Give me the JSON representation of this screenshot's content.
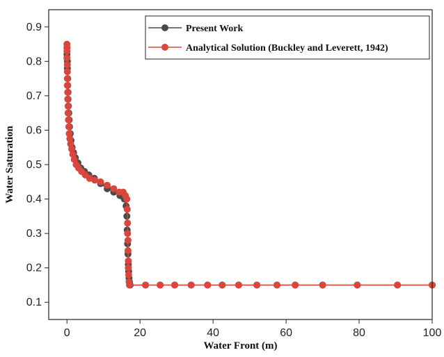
{
  "chart_data": {
    "type": "line",
    "title": "",
    "xlabel": "Water Front (m)",
    "ylabel": "Water Saturation",
    "xlim": [
      -5,
      100
    ],
    "ylim": [
      0.05,
      0.95
    ],
    "xticks": [
      0,
      20,
      40,
      60,
      80,
      100
    ],
    "yticks": [
      0.1,
      0.2,
      0.3,
      0.4,
      0.5,
      0.6,
      0.7,
      0.8,
      0.9
    ],
    "grid": false,
    "legend_position": "top-right",
    "series": [
      {
        "name": "Present Work",
        "color": "#4a4a4a",
        "x": [
          0.0,
          0.0,
          0.1,
          0.1,
          0.2,
          0.2,
          0.3,
          0.3,
          0.4,
          0.5,
          0.6,
          0.7,
          0.9,
          1.1,
          1.4,
          1.8,
          2.3,
          3.0,
          3.8,
          4.8,
          6.0,
          7.5,
          9.2,
          11.0,
          12.8,
          14.5,
          15.7,
          16.2,
          16.4,
          16.5,
          16.6,
          16.7,
          16.8,
          16.9,
          17.0,
          17.1,
          17.3,
          21.5,
          25.5,
          29.5,
          34.0,
          38.5,
          42.5,
          47.0,
          52.0,
          57.5,
          62.5,
          70.0,
          79.5,
          90.5,
          100.0
        ],
        "y": [
          0.84,
          0.82,
          0.8,
          0.78,
          0.75,
          0.73,
          0.71,
          0.69,
          0.67,
          0.65,
          0.63,
          0.61,
          0.59,
          0.57,
          0.55,
          0.535,
          0.52,
          0.505,
          0.49,
          0.48,
          0.47,
          0.46,
          0.445,
          0.43,
          0.42,
          0.41,
          0.4,
          0.38,
          0.35,
          0.31,
          0.27,
          0.24,
          0.21,
          0.19,
          0.17,
          0.16,
          0.15,
          0.15,
          0.15,
          0.15,
          0.15,
          0.15,
          0.15,
          0.15,
          0.15,
          0.15,
          0.15,
          0.15,
          0.15,
          0.15,
          0.15
        ]
      },
      {
        "name": "Analytical Solution (Buckley and Leverett, 1942)",
        "color": "#d9463b",
        "x": [
          0.0,
          0.0,
          0.0,
          0.0,
          0.1,
          0.1,
          0.1,
          0.1,
          0.2,
          0.2,
          0.3,
          0.3,
          0.4,
          0.5,
          0.6,
          0.8,
          1.0,
          1.3,
          1.6,
          2.0,
          2.5,
          3.2,
          4.0,
          5.0,
          6.2,
          7.6,
          9.2,
          11.0,
          12.8,
          14.3,
          15.4,
          16.0,
          16.4,
          16.5,
          16.6,
          16.6,
          16.7,
          16.7,
          16.8,
          16.8,
          16.9,
          17.0,
          17.1,
          21.5,
          25.5,
          29.5,
          34.0,
          38.5,
          42.5,
          47.0,
          52.0,
          57.5,
          62.5,
          70.0,
          79.5,
          90.5,
          100.0
        ],
        "y": [
          0.85,
          0.84,
          0.83,
          0.81,
          0.79,
          0.77,
          0.75,
          0.73,
          0.71,
          0.69,
          0.67,
          0.65,
          0.63,
          0.61,
          0.59,
          0.575,
          0.56,
          0.545,
          0.53,
          0.515,
          0.5,
          0.49,
          0.48,
          0.47,
          0.46,
          0.455,
          0.45,
          0.44,
          0.43,
          0.42,
          0.42,
          0.41,
          0.4,
          0.37,
          0.33,
          0.3,
          0.28,
          0.25,
          0.22,
          0.2,
          0.18,
          0.16,
          0.15,
          0.15,
          0.15,
          0.15,
          0.15,
          0.15,
          0.15,
          0.15,
          0.15,
          0.15,
          0.15,
          0.15,
          0.15,
          0.15,
          0.15
        ]
      }
    ]
  }
}
